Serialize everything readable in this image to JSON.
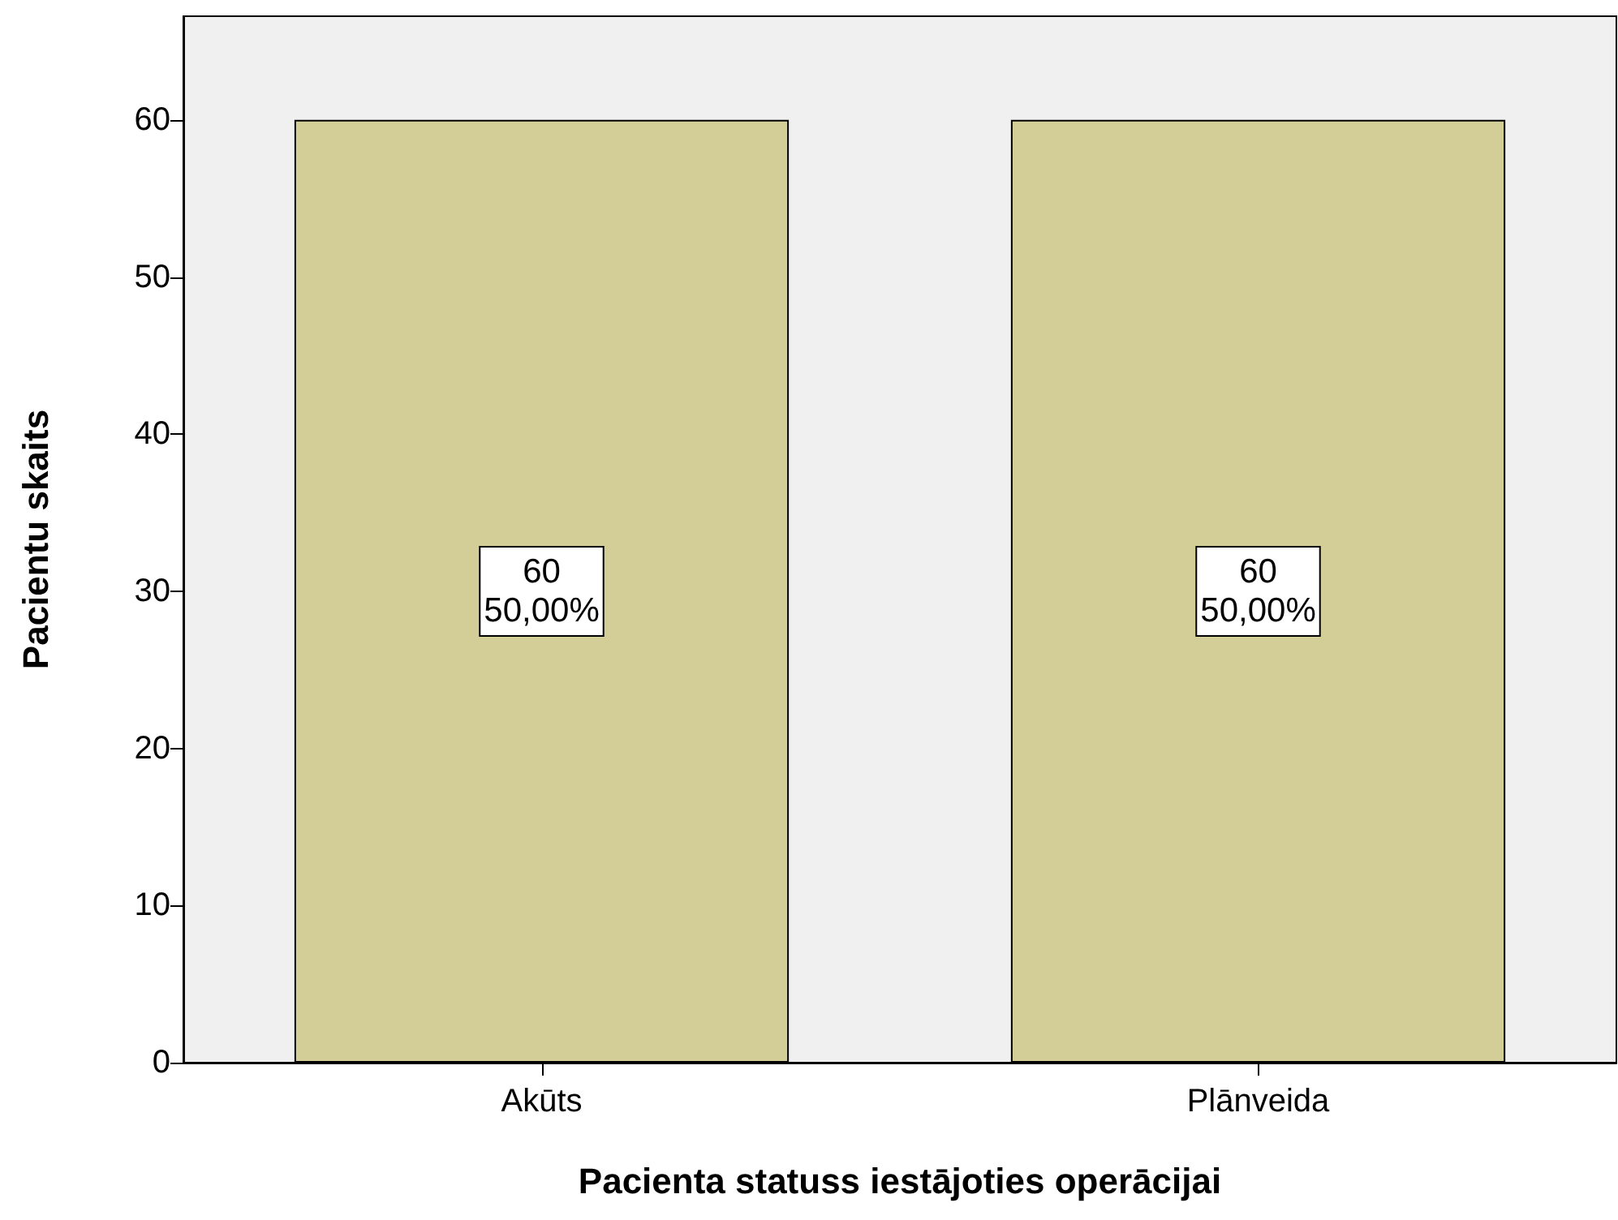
{
  "chart_data": {
    "type": "bar",
    "xlabel": "Pacienta statuss iestājoties operācijai",
    "ylabel": "Pacientu skaits",
    "categories": [
      "Akūts",
      "Plānveida"
    ],
    "values": [
      60,
      60
    ],
    "color": "#d3ce98",
    "value_labels": [
      "60\n50,00%",
      "60\n50,00%"
    ],
    "ylim": [
      0,
      66.6
    ],
    "yticks": [
      0,
      10,
      20,
      30,
      40,
      50,
      60
    ]
  }
}
